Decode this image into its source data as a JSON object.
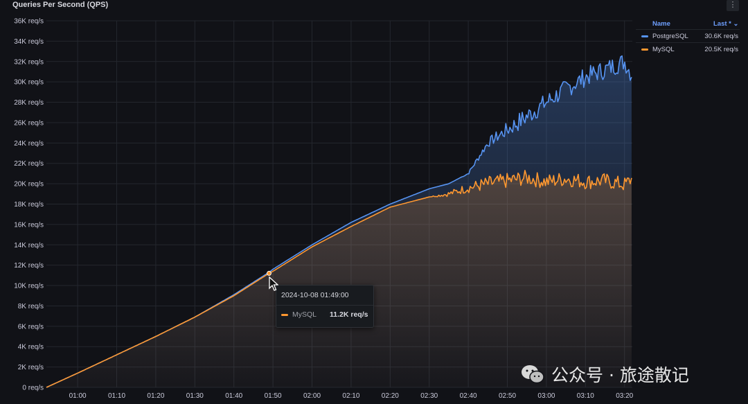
{
  "panel": {
    "title": "Queries Per Second (QPS)",
    "menu_icon": "vertical-ellipsis-icon"
  },
  "legend": {
    "name_header": "Name",
    "last_header": "Last * ⌄",
    "items": [
      {
        "name": "PostgreSQL",
        "value": "30.6K req/s",
        "color": "#5794f2"
      },
      {
        "name": "MySQL",
        "value": "20.5K req/s",
        "color": "#ff9830"
      }
    ]
  },
  "tooltip": {
    "time": "2024-10-08 01:49:00",
    "series": "MySQL",
    "value": "11.2K req/s",
    "color": "#ff9830"
  },
  "watermark": {
    "text": "公众号 · 旅途散记"
  },
  "chart_data": {
    "type": "line",
    "title": "Queries Per Second (QPS)",
    "y_unit": "req/s",
    "ylim": [
      0,
      36000
    ],
    "xlim": [
      "00:52",
      "03:22"
    ],
    "y_ticks": [
      "0 req/s",
      "2K req/s",
      "4K req/s",
      "6K req/s",
      "8K req/s",
      "10K req/s",
      "12K req/s",
      "14K req/s",
      "16K req/s",
      "18K req/s",
      "20K req/s",
      "22K req/s",
      "24K req/s",
      "26K req/s",
      "28K req/s",
      "30K req/s",
      "32K req/s",
      "34K req/s",
      "36K req/s"
    ],
    "x_ticks": [
      "01:00",
      "01:10",
      "01:20",
      "01:30",
      "01:40",
      "01:50",
      "02:00",
      "02:10",
      "02:20",
      "02:30",
      "02:40",
      "02:50",
      "03:00",
      "03:10",
      "03:20"
    ],
    "grid": true,
    "legend_position": "right",
    "series": [
      {
        "name": "PostgreSQL",
        "color": "#5794f2",
        "x": [
          "00:52",
          "01:00",
          "01:10",
          "01:20",
          "01:30",
          "01:40",
          "01:49",
          "01:50",
          "02:00",
          "02:10",
          "02:20",
          "02:30",
          "02:35",
          "02:40",
          "02:45",
          "02:50",
          "02:55",
          "03:00",
          "03:05",
          "03:10",
          "03:15",
          "03:20",
          "03:22"
        ],
        "values": [
          0,
          1400,
          3200,
          5000,
          6900,
          9100,
          11300,
          11600,
          14000,
          16200,
          18000,
          19500,
          20000,
          21000,
          24000,
          25300,
          26600,
          28000,
          29300,
          30500,
          31200,
          32000,
          30600
        ]
      },
      {
        "name": "MySQL",
        "color": "#ff9830",
        "x": [
          "00:52",
          "01:00",
          "01:10",
          "01:20",
          "01:30",
          "01:40",
          "01:49",
          "01:50",
          "02:00",
          "02:10",
          "02:20",
          "02:30",
          "02:35",
          "02:40",
          "02:45",
          "02:50",
          "02:55",
          "03:00",
          "03:05",
          "03:10",
          "03:15",
          "03:20",
          "03:22"
        ],
        "values": [
          0,
          1400,
          3200,
          5000,
          6900,
          9000,
          11200,
          11400,
          13800,
          15800,
          17700,
          18700,
          19000,
          19600,
          20000,
          20300,
          20600,
          20200,
          20500,
          20200,
          20300,
          19900,
          20500
        ]
      }
    ]
  }
}
